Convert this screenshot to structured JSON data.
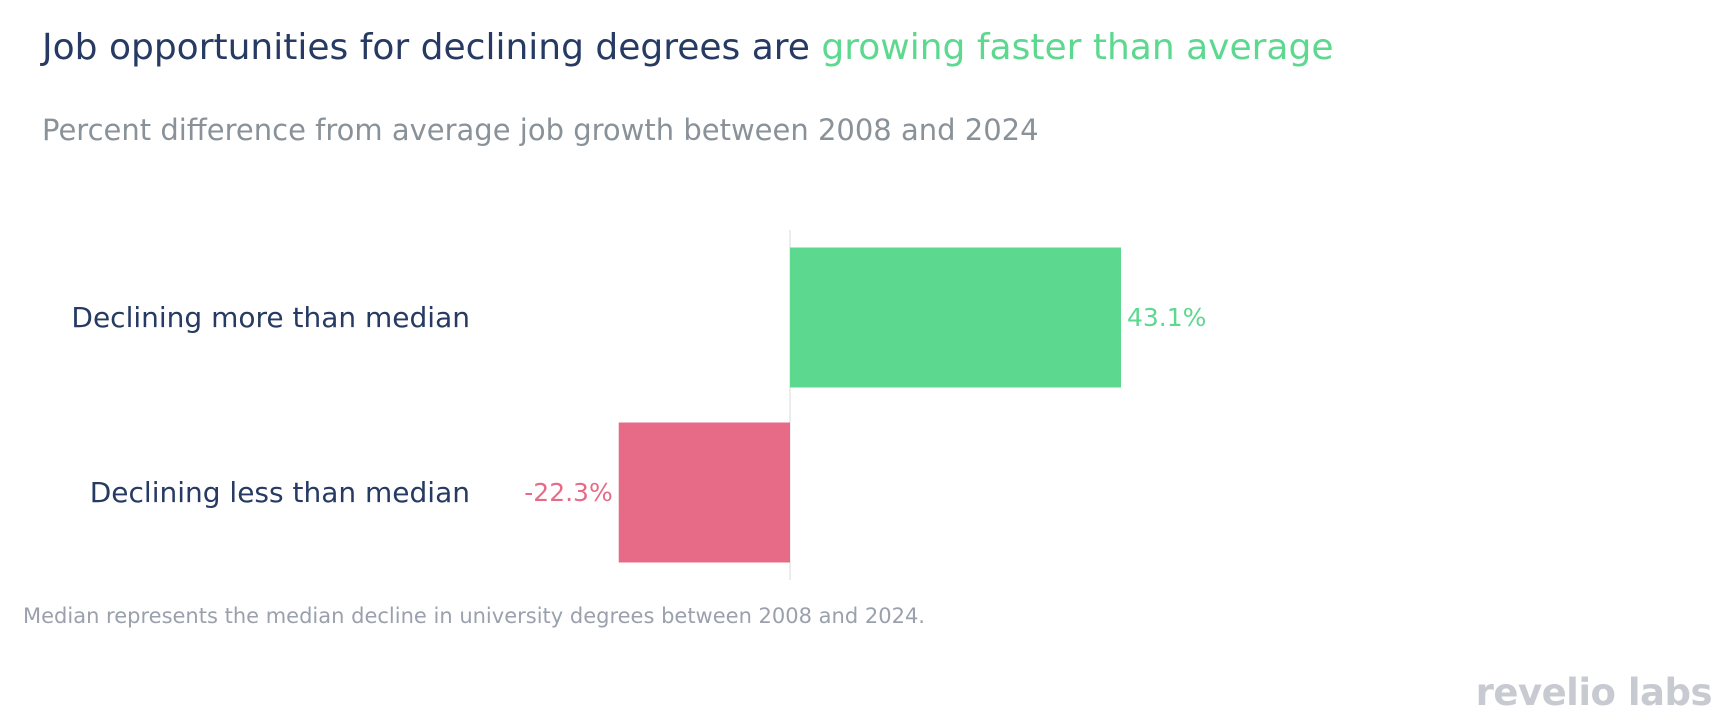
{
  "header": {
    "title_part1": "Job opportunities for declining degrees are ",
    "title_part2": "growing faster than average",
    "subtitle": "Percent difference from average job growth between 2008 and 2024"
  },
  "chart_data": {
    "type": "bar",
    "orientation": "horizontal",
    "categories": [
      "Declining more than median",
      "Declining less than median"
    ],
    "values": [
      43.1,
      -22.3
    ],
    "labels": [
      "43.1%",
      "-22.3%"
    ],
    "colors": [
      "#5dd88f",
      "#e76b87"
    ],
    "xlim": [
      -45,
      130
    ],
    "grid": false
  },
  "footnote": "Median represents the median decline in university degrees between 2008 and 2024.",
  "logo": {
    "text": "revelio labs"
  },
  "colors": {
    "title": "#263a63",
    "highlight": "#5dd88f",
    "subtitle": "#8a9299",
    "positive": "#5dd88f",
    "negative": "#e76b87",
    "footnote": "#9aa1ad",
    "logo": "#c7cbd1"
  }
}
